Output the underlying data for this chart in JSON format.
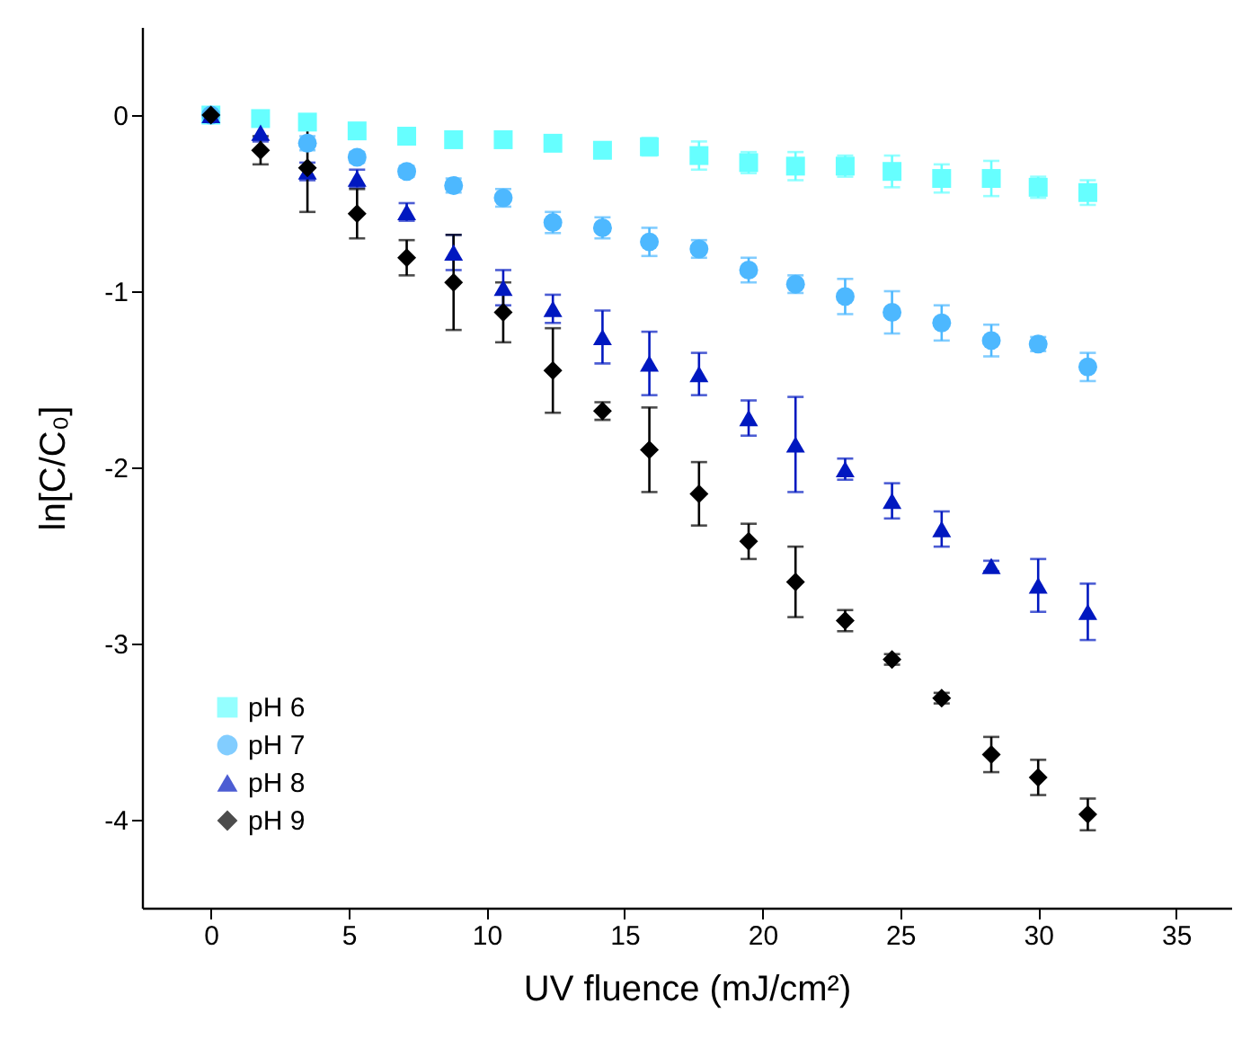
{
  "chart_data": {
    "type": "scatter",
    "xlabel": "UV fluence (mJ/cm²)",
    "ylabel": "ln[C/C₀]",
    "x": [
      0,
      1.8,
      3.5,
      5.3,
      7.1,
      8.8,
      10.6,
      12.4,
      14.2,
      15.9,
      17.7,
      19.5,
      21.2,
      23.0,
      24.7,
      26.5,
      28.3,
      30.0,
      31.8
    ],
    "series": [
      {
        "name": "pH 6",
        "color": "#66ffff",
        "marker": "square",
        "values": [
          0,
          -0.02,
          -0.04,
          -0.09,
          -0.12,
          -0.14,
          -0.14,
          -0.16,
          -0.2,
          -0.18,
          -0.23,
          -0.27,
          -0.29,
          -0.29,
          -0.32,
          -0.36,
          -0.36,
          -0.41,
          -0.44
        ],
        "errors": [
          null,
          0.02,
          0.02,
          0.02,
          0.02,
          0.02,
          0.02,
          0.04,
          0.03,
          0.05,
          0.08,
          0.06,
          0.08,
          0.06,
          0.09,
          0.08,
          0.1,
          0.06,
          0.07
        ]
      },
      {
        "name": "pH 7",
        "color": "#4db8ff",
        "marker": "circle",
        "values": [
          0,
          null,
          -0.16,
          -0.24,
          -0.32,
          -0.4,
          -0.47,
          -0.61,
          -0.64,
          -0.72,
          -0.76,
          -0.88,
          -0.96,
          -1.03,
          -1.12,
          -1.18,
          -1.28,
          -1.3,
          -1.43
        ],
        "errors": [
          null,
          null,
          0.04,
          0.03,
          0.03,
          0.04,
          0.05,
          0.06,
          0.06,
          0.08,
          0.05,
          0.07,
          0.05,
          0.1,
          0.12,
          0.1,
          0.09,
          0.04,
          0.08
        ]
      },
      {
        "name": "pH 8",
        "color": "#0018c0",
        "marker": "triangle",
        "values": [
          0,
          -0.1,
          -0.32,
          -0.36,
          -0.55,
          -0.78,
          -0.98,
          -1.1,
          -1.26,
          -1.41,
          -1.47,
          -1.72,
          -1.87,
          -2.01,
          -2.19,
          -2.35,
          -2.56,
          -2.67,
          -2.82
        ],
        "errors": [
          null,
          0.05,
          0.05,
          0.05,
          0.05,
          0.1,
          0.1,
          0.08,
          0.15,
          0.18,
          0.12,
          0.1,
          0.27,
          0.06,
          0.1,
          0.1,
          0.03,
          0.15,
          0.16
        ]
      },
      {
        "name": "pH 9",
        "color": "#000000",
        "marker": "diamond",
        "values": [
          0,
          -0.2,
          -0.3,
          -0.56,
          -0.81,
          -0.95,
          -1.12,
          -1.45,
          -1.68,
          -1.9,
          -2.15,
          -2.42,
          -2.65,
          -2.87,
          -3.09,
          -3.31,
          -3.63,
          -3.76,
          -3.97
        ],
        "errors": [
          null,
          0.08,
          0.25,
          0.14,
          0.1,
          0.27,
          0.17,
          0.24,
          0.05,
          0.24,
          0.18,
          0.1,
          0.2,
          0.06,
          0.03,
          0.03,
          0.1,
          0.1,
          0.09
        ]
      }
    ],
    "xlim": [
      -2.5,
      37
    ],
    "ylim": [
      -4.5,
      0.5
    ],
    "xticks": [
      0,
      5,
      10,
      15,
      20,
      25,
      30,
      35
    ],
    "yticks": [
      -4,
      -3,
      -2,
      -1,
      0
    ],
    "legend": "bottom left",
    "grid": false
  }
}
